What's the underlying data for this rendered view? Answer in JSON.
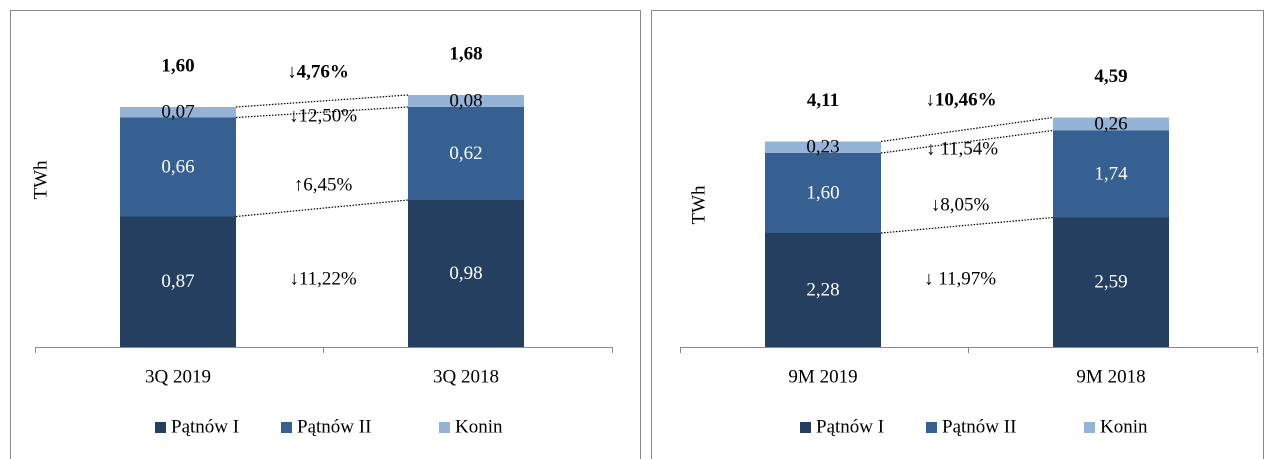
{
  "chart_data": [
    {
      "type": "bar",
      "stacked": true,
      "ylabel": "TWh",
      "categories": [
        "3Q 2019",
        "3Q 2018"
      ],
      "ylim": [
        0,
        2
      ],
      "series": [
        {
          "name": "Pątnów I",
          "color": "#243f60",
          "values": [
            0.87,
            0.98
          ],
          "value_labels": [
            "0,87",
            "0,98"
          ]
        },
        {
          "name": "Pątnów II",
          "color": "#366092",
          "values": [
            0.66,
            0.62
          ],
          "value_labels": [
            "0,66",
            "0,62"
          ]
        },
        {
          "name": "Konin",
          "color": "#95b3d7",
          "values": [
            0.07,
            0.08
          ],
          "value_labels": [
            "0,07",
            "0,08"
          ]
        }
      ],
      "totals": {
        "values": [
          1.6,
          1.68
        ],
        "value_labels": [
          "1,60",
          "1,68"
        ]
      },
      "annotations": [
        "↓4,76%",
        "↓12,50%",
        "↑6,45%",
        "↓11,22%"
      ]
    },
    {
      "type": "bar",
      "stacked": true,
      "ylabel": "TWh",
      "categories": [
        "9M 2019",
        "9M 2018"
      ],
      "ylim": [
        0,
        6
      ],
      "series": [
        {
          "name": "Pątnów I",
          "color": "#243f60",
          "values": [
            2.28,
            2.59
          ],
          "value_labels": [
            "2,28",
            "2,59"
          ]
        },
        {
          "name": "Pątnów II",
          "color": "#366092",
          "values": [
            1.6,
            1.74
          ],
          "value_labels": [
            "1,60",
            "1,74"
          ]
        },
        {
          "name": "Konin",
          "color": "#95b3d7",
          "values": [
            0.23,
            0.26
          ],
          "value_labels": [
            "0,23",
            "0,26"
          ]
        }
      ],
      "totals": {
        "values": [
          4.11,
          4.59
        ],
        "value_labels": [
          "4,11",
          "4,59"
        ]
      },
      "annotations": [
        "↓10,46%",
        "↓ 11,54%",
        "↓8,05%",
        "↓ 11,97%"
      ]
    }
  ]
}
